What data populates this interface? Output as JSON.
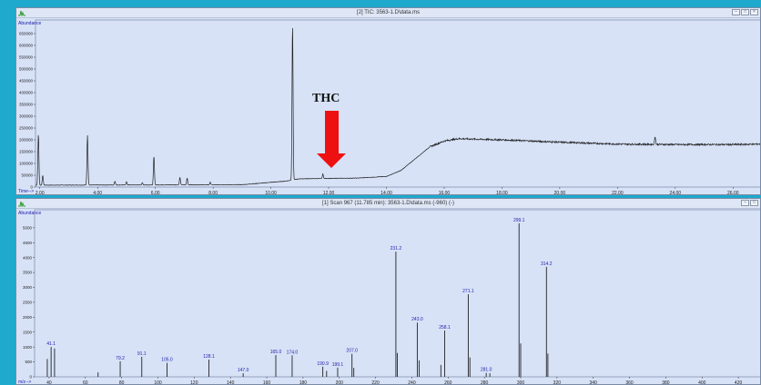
{
  "tic_window": {
    "title": "[2] TIC: 3563-1.D\\data.ms",
    "y_axis_label": "Abundance",
    "x_axis_label": "Time-->",
    "annotation": "THC",
    "annotation_color": "#ee1111"
  },
  "scan_window": {
    "title": "[1] Scan 967 (11.785 min): 3563-1.D\\data.ms (-960) (-)",
    "y_axis_label": "Abundance",
    "x_axis_label": "m/z-->"
  },
  "chart_data": [
    {
      "type": "line",
      "title": "TIC",
      "ylabel": "Abundance",
      "xlabel": "Time-->",
      "xlim": [
        1.85,
        27.0
      ],
      "ylim": [
        0,
        700000
      ],
      "x_ticks": [
        "2.00",
        "4.00",
        "6.00",
        "8.00",
        "10.00",
        "12.00",
        "14.00",
        "16.00",
        "18.00",
        "20.00",
        "22.00",
        "24.00",
        "26.00"
      ],
      "y_ticks": [
        "0",
        "50000",
        "100000",
        "150000",
        "200000",
        "250000",
        "300000",
        "350000",
        "400000",
        "450000",
        "500000",
        "550000",
        "600000",
        "650000"
      ],
      "baseline": [
        [
          1.85,
          8000
        ],
        [
          9,
          10000
        ],
        [
          10.5,
          25000
        ],
        [
          11,
          35000
        ],
        [
          13,
          38000
        ],
        [
          14,
          45000
        ],
        [
          14.5,
          70000
        ],
        [
          15,
          120000
        ],
        [
          15.5,
          170000
        ],
        [
          16,
          195000
        ],
        [
          16.5,
          205000
        ],
        [
          17,
          203000
        ],
        [
          18,
          200000
        ],
        [
          20,
          190000
        ],
        [
          22,
          182000
        ],
        [
          24,
          180000
        ],
        [
          26,
          180000
        ],
        [
          27,
          182000
        ]
      ],
      "peaks": [
        [
          1.95,
          225000
        ],
        [
          2.1,
          50000
        ],
        [
          3.65,
          220000
        ],
        [
          4.6,
          25000
        ],
        [
          5.0,
          22000
        ],
        [
          5.55,
          18000
        ],
        [
          5.95,
          130000
        ],
        [
          6.85,
          40000
        ],
        [
          7.1,
          38000
        ],
        [
          7.9,
          20000
        ],
        [
          10.75,
          690000
        ],
        [
          11.8,
          55000
        ],
        [
          23.3,
          215000
        ]
      ],
      "color": "#222222"
    },
    {
      "type": "bar",
      "title": "Scan 967",
      "ylabel": "Abundance",
      "xlabel": "m/z-->",
      "xlim": [
        32,
        433
      ],
      "ylim": [
        0,
        5300
      ],
      "x_ticks": [
        "40",
        "60",
        "80",
        "100",
        "120",
        "140",
        "160",
        "180",
        "200",
        "220",
        "240",
        "260",
        "280",
        "300",
        "320",
        "340",
        "360",
        "380",
        "400",
        "420"
      ],
      "y_ticks": [
        "0",
        "500",
        "1000",
        "1500",
        "2000",
        "2500",
        "3000",
        "3500",
        "4000",
        "4500",
        "5000"
      ],
      "peaks": [
        {
          "mz": 39.0,
          "value": 600
        },
        {
          "mz": 41.1,
          "value": 1000,
          "label": "41.1"
        },
        {
          "mz": 43.0,
          "value": 950
        },
        {
          "mz": 67.0,
          "value": 150
        },
        {
          "mz": 79.2,
          "value": 520,
          "label": "79.2"
        },
        {
          "mz": 91.1,
          "value": 670,
          "label": "91.1"
        },
        {
          "mz": 105.0,
          "value": 470,
          "label": "105.0"
        },
        {
          "mz": 128.1,
          "value": 580,
          "label": "128.1"
        },
        {
          "mz": 147.0,
          "value": 120,
          "label": "147.0"
        },
        {
          "mz": 165.0,
          "value": 730,
          "label": "165.0"
        },
        {
          "mz": 174.0,
          "value": 720,
          "label": "174.0"
        },
        {
          "mz": 190.9,
          "value": 340,
          "label": "190.9"
        },
        {
          "mz": 193.0,
          "value": 200
        },
        {
          "mz": 199.1,
          "value": 310,
          "label": "199.1"
        },
        {
          "mz": 207.0,
          "value": 770,
          "label": "207.0"
        },
        {
          "mz": 208.0,
          "value": 300
        },
        {
          "mz": 231.2,
          "value": 4200,
          "label": "231.2"
        },
        {
          "mz": 232.0,
          "value": 800
        },
        {
          "mz": 243.0,
          "value": 1820,
          "label": "243.0"
        },
        {
          "mz": 244.0,
          "value": 550
        },
        {
          "mz": 256.0,
          "value": 400
        },
        {
          "mz": 258.1,
          "value": 1550,
          "label": "258.1"
        },
        {
          "mz": 271.1,
          "value": 2770,
          "label": "271.1"
        },
        {
          "mz": 272.0,
          "value": 650
        },
        {
          "mz": 281.0,
          "value": 130,
          "label": "281.0"
        },
        {
          "mz": 283.0,
          "value": 120
        },
        {
          "mz": 299.1,
          "value": 5150,
          "label": "299.1"
        },
        {
          "mz": 300.0,
          "value": 1120
        },
        {
          "mz": 314.2,
          "value": 3690,
          "label": "314.2"
        },
        {
          "mz": 315.0,
          "value": 780
        }
      ],
      "color": "#222222",
      "label_color": "#2222aa"
    }
  ]
}
